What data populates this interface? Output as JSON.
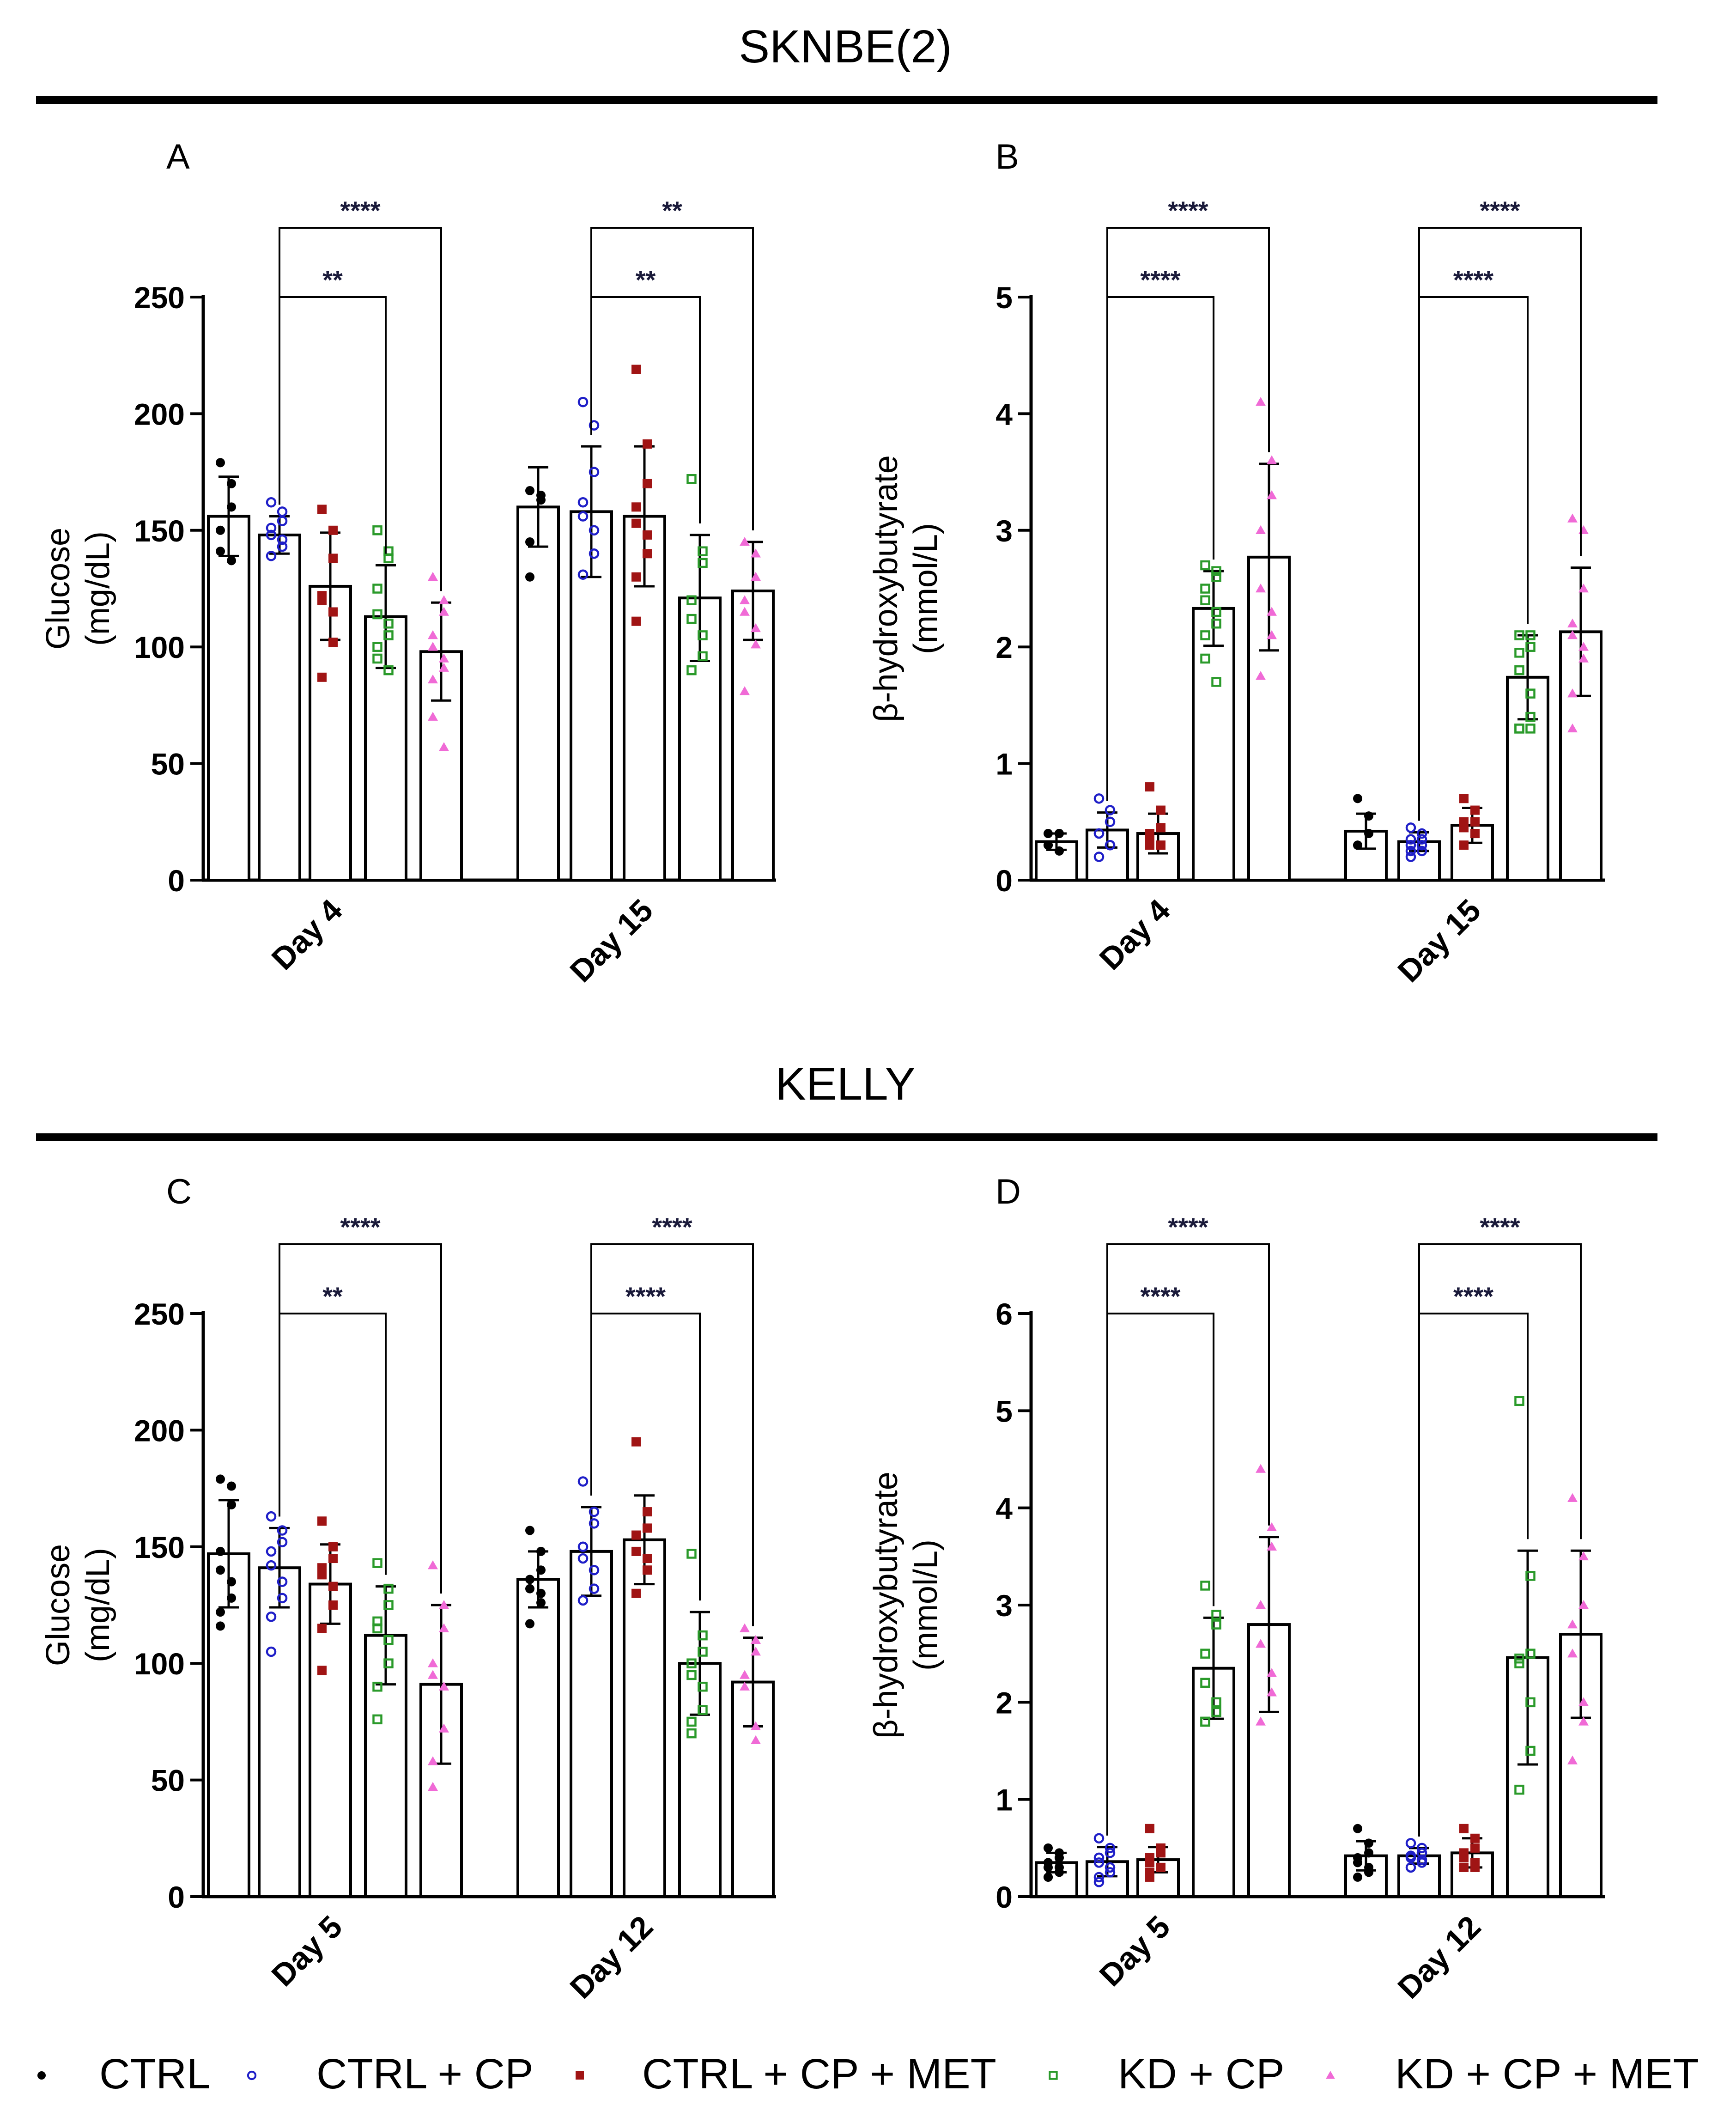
{
  "sections": [
    {
      "title": "SKNBE(2)"
    },
    {
      "title": "KELLY"
    }
  ],
  "legend": [
    {
      "label": "CTRL",
      "marker": "filled-circle",
      "color": "#000000"
    },
    {
      "label": "CTRL + CP",
      "marker": "open-circle",
      "color": "#1f1fc8"
    },
    {
      "label": "CTRL + CP + MET",
      "marker": "filled-square",
      "color": "#a01414"
    },
    {
      "label": "KD + CP",
      "marker": "open-square",
      "color": "#2a9a2a"
    },
    {
      "label": "KD + CP + MET",
      "marker": "filled-triangle",
      "color": "#f06ad6"
    }
  ],
  "chart_data": [
    {
      "panel": "A",
      "type": "bar",
      "ylabel": [
        "Glucose",
        "(mg/dL)"
      ],
      "ylim": [
        0,
        250
      ],
      "yticks": [
        0,
        50,
        100,
        150,
        200,
        250
      ],
      "categories": [
        "Day 4",
        "Day 15"
      ],
      "series": [
        {
          "name": "CTRL",
          "means": [
            156,
            160
          ],
          "sd": [
            17,
            17
          ],
          "points": [
            [
              179,
              170,
              160,
              150,
              141,
              137
            ],
            [
              167,
              165,
              163,
              145,
              130
            ]
          ]
        },
        {
          "name": "CTRL + CP",
          "means": [
            148,
            158
          ],
          "sd": [
            8,
            28
          ],
          "points": [
            [
              162,
              158,
              154,
              151,
              148,
              146,
              143,
              139
            ],
            [
              205,
              195,
              175,
              162,
              156,
              150,
              140,
              131
            ]
          ]
        },
        {
          "name": "CTRL + CP + MET",
          "means": [
            126,
            156
          ],
          "sd": [
            23,
            30
          ],
          "points": [
            [
              159,
              150,
              138,
              122,
              120,
              115,
              102,
              87
            ],
            [
              219,
              187,
              170,
              160,
              153,
              148,
              140,
              130,
              111
            ]
          ]
        },
        {
          "name": "KD + CP",
          "means": [
            113,
            121
          ],
          "sd": [
            22,
            27
          ],
          "points": [
            [
              150,
              141,
              138,
              125,
              114,
              110,
              105,
              100,
              95,
              90
            ],
            [
              172,
              141,
              136,
              120,
              112,
              105,
              96,
              90
            ]
          ]
        },
        {
          "name": "KD + CP + MET",
          "means": [
            98,
            124
          ],
          "sd": [
            21,
            21
          ],
          "points": [
            [
              130,
              120,
              115,
              105,
              100,
              95,
              91,
              86,
              70,
              57
            ],
            [
              145,
              140,
              130,
              120,
              115,
              108,
              101,
              81
            ]
          ]
        }
      ],
      "comparisons": [
        {
          "group": 0,
          "from": 1,
          "to": 3,
          "label": "**"
        },
        {
          "group": 0,
          "from": 1,
          "to": 4,
          "label": "****"
        },
        {
          "group": 1,
          "from": 1,
          "to": 3,
          "label": "**"
        },
        {
          "group": 1,
          "from": 1,
          "to": 4,
          "label": "**"
        }
      ]
    },
    {
      "panel": "B",
      "type": "bar",
      "ylabel": [
        "β-hydroxybutyrate",
        "(mmol/L)"
      ],
      "ylim": [
        0,
        5
      ],
      "yticks": [
        0,
        1,
        2,
        3,
        4,
        5
      ],
      "categories": [
        "Day 4",
        "Day 15"
      ],
      "series": [
        {
          "name": "CTRL",
          "means": [
            0.33,
            0.42
          ],
          "sd": [
            0.07,
            0.15
          ],
          "points": [
            [
              0.4,
              0.4,
              0.4,
              0.3,
              0.3,
              0.25
            ],
            [
              0.7,
              0.55,
              0.4,
              0.3,
              0.3
            ]
          ]
        },
        {
          "name": "CTRL + CP",
          "means": [
            0.43,
            0.33
          ],
          "sd": [
            0.15,
            0.08
          ],
          "points": [
            [
              0.7,
              0.6,
              0.5,
              0.4,
              0.4,
              0.3,
              0.3,
              0.2
            ],
            [
              0.45,
              0.4,
              0.35,
              0.35,
              0.3,
              0.3,
              0.25,
              0.25,
              0.2
            ]
          ]
        },
        {
          "name": "CTRL + CP + MET",
          "means": [
            0.4,
            0.47
          ],
          "sd": [
            0.17,
            0.15
          ],
          "points": [
            [
              0.8,
              0.6,
              0.45,
              0.4,
              0.35,
              0.3,
              0.3,
              0.3,
              0.3
            ],
            [
              0.7,
              0.6,
              0.5,
              0.5,
              0.45,
              0.4,
              0.4,
              0.3,
              0.3
            ]
          ]
        },
        {
          "name": "KD + CP",
          "means": [
            2.33,
            1.74
          ],
          "sd": [
            0.32,
            0.36
          ],
          "points": [
            [
              2.7,
              2.65,
              2.6,
              2.5,
              2.4,
              2.3,
              2.2,
              2.1,
              1.9,
              1.7
            ],
            [
              2.1,
              2.1,
              2.0,
              1.95,
              1.8,
              1.6,
              1.4,
              1.3,
              1.3,
              1.3
            ]
          ]
        },
        {
          "name": "KD + CP + MET",
          "means": [
            2.77,
            2.13
          ],
          "sd": [
            0.8,
            0.55
          ],
          "points": [
            [
              4.1,
              3.6,
              3.3,
              3.0,
              2.5,
              2.3,
              2.1,
              1.75
            ],
            [
              3.1,
              3.0,
              2.5,
              2.2,
              2.1,
              2.0,
              1.9,
              1.6,
              1.3
            ]
          ]
        }
      ],
      "comparisons": [
        {
          "group": 0,
          "from": 1,
          "to": 3,
          "label": "****"
        },
        {
          "group": 0,
          "from": 1,
          "to": 4,
          "label": "****"
        },
        {
          "group": 1,
          "from": 1,
          "to": 3,
          "label": "****"
        },
        {
          "group": 1,
          "from": 1,
          "to": 4,
          "label": "****"
        }
      ]
    },
    {
      "panel": "C",
      "type": "bar",
      "ylabel": [
        "Glucose",
        "(mg/dL)"
      ],
      "ylim": [
        0,
        250
      ],
      "yticks": [
        0,
        50,
        100,
        150,
        200,
        250
      ],
      "categories": [
        "Day 5",
        "Day 12"
      ],
      "series": [
        {
          "name": "CTRL",
          "means": [
            147,
            136
          ],
          "sd": [
            23,
            12
          ],
          "points": [
            [
              179,
              176,
              168,
              148,
              140,
              135,
              128,
              122,
              116
            ],
            [
              157,
              148,
              140,
              136,
              132,
              130,
              126,
              117
            ]
          ]
        },
        {
          "name": "CTRL + CP",
          "means": [
            141,
            148
          ],
          "sd": [
            17,
            19
          ],
          "points": [
            [
              163,
              157,
              152,
              148,
              142,
              135,
              128,
              120,
              105
            ],
            [
              178,
              165,
              160,
              150,
              145,
              140,
              132,
              127
            ]
          ]
        },
        {
          "name": "CTRL + CP + MET",
          "means": [
            134,
            153
          ],
          "sd": [
            17,
            19
          ],
          "points": [
            [
              161,
              150,
              145,
              141,
              138,
              133,
              125,
              115,
              97
            ],
            [
              195,
              165,
              158,
              155,
              148,
              145,
              140,
              130
            ]
          ]
        },
        {
          "name": "KD + CP",
          "means": [
            112,
            100
          ],
          "sd": [
            21,
            22
          ],
          "points": [
            [
              143,
              132,
              125,
              118,
              115,
              110,
              100,
              90,
              76
            ],
            [
              147,
              112,
              105,
              100,
              95,
              90,
              80,
              75,
              70
            ]
          ]
        },
        {
          "name": "KD + CP + MET",
          "means": [
            91,
            92
          ],
          "sd": [
            34,
            19
          ],
          "points": [
            [
              142,
              125,
              115,
              100,
              95,
              90,
              72,
              58,
              47
            ],
            [
              115,
              110,
              105,
              95,
              90,
              73,
              67
            ]
          ]
        }
      ],
      "comparisons": [
        {
          "group": 0,
          "from": 1,
          "to": 3,
          "label": "**"
        },
        {
          "group": 0,
          "from": 1,
          "to": 4,
          "label": "****"
        },
        {
          "group": 1,
          "from": 1,
          "to": 3,
          "label": "****"
        },
        {
          "group": 1,
          "from": 1,
          "to": 4,
          "label": "****"
        }
      ]
    },
    {
      "panel": "D",
      "type": "bar",
      "ylabel": [
        "β-hydroxybutyrate",
        "(mmol/L)"
      ],
      "ylim": [
        0,
        6
      ],
      "yticks": [
        0,
        1,
        2,
        3,
        4,
        5,
        6
      ],
      "categories": [
        "Day 5",
        "Day 12"
      ],
      "series": [
        {
          "name": "CTRL",
          "means": [
            0.35,
            0.42
          ],
          "sd": [
            0.1,
            0.15
          ],
          "points": [
            [
              0.5,
              0.45,
              0.4,
              0.35,
              0.3,
              0.3,
              0.25,
              0.2,
              0.2
            ],
            [
              0.7,
              0.55,
              0.45,
              0.4,
              0.35,
              0.3,
              0.25,
              0.2
            ]
          ]
        },
        {
          "name": "CTRL + CP",
          "means": [
            0.36,
            0.42
          ],
          "sd": [
            0.15,
            0.08
          ],
          "points": [
            [
              0.6,
              0.5,
              0.45,
              0.4,
              0.35,
              0.3,
              0.25,
              0.2,
              0.15
            ],
            [
              0.55,
              0.5,
              0.45,
              0.42,
              0.4,
              0.38,
              0.35,
              0.3
            ]
          ]
        },
        {
          "name": "CTRL + CP + MET",
          "means": [
            0.38,
            0.45
          ],
          "sd": [
            0.13,
            0.15
          ],
          "points": [
            [
              0.7,
              0.5,
              0.45,
              0.4,
              0.35,
              0.3,
              0.3,
              0.25,
              0.2
            ],
            [
              0.7,
              0.6,
              0.5,
              0.45,
              0.4,
              0.35,
              0.3,
              0.3
            ]
          ]
        },
        {
          "name": "KD + CP",
          "means": [
            2.35,
            2.46
          ],
          "sd": [
            0.52,
            1.1
          ],
          "points": [
            [
              3.2,
              2.9,
              2.8,
              2.5,
              2.2,
              2.0,
              1.9,
              1.8,
              1.8
            ],
            [
              5.1,
              3.3,
              2.5,
              2.45,
              2.4,
              2.0,
              1.5,
              1.1
            ]
          ]
        },
        {
          "name": "KD + CP + MET",
          "means": [
            2.8,
            2.7
          ],
          "sd": [
            0.9,
            0.86
          ],
          "points": [
            [
              4.4,
              3.8,
              3.6,
              3.0,
              2.6,
              2.3,
              2.1,
              1.8
            ],
            [
              4.1,
              3.5,
              3.0,
              2.8,
              2.5,
              2.0,
              1.8,
              1.4
            ]
          ]
        }
      ],
      "comparisons": [
        {
          "group": 0,
          "from": 1,
          "to": 3,
          "label": "****"
        },
        {
          "group": 0,
          "from": 1,
          "to": 4,
          "label": "****"
        },
        {
          "group": 1,
          "from": 1,
          "to": 3,
          "label": "****"
        },
        {
          "group": 1,
          "from": 1,
          "to": 4,
          "label": "****"
        }
      ]
    }
  ]
}
